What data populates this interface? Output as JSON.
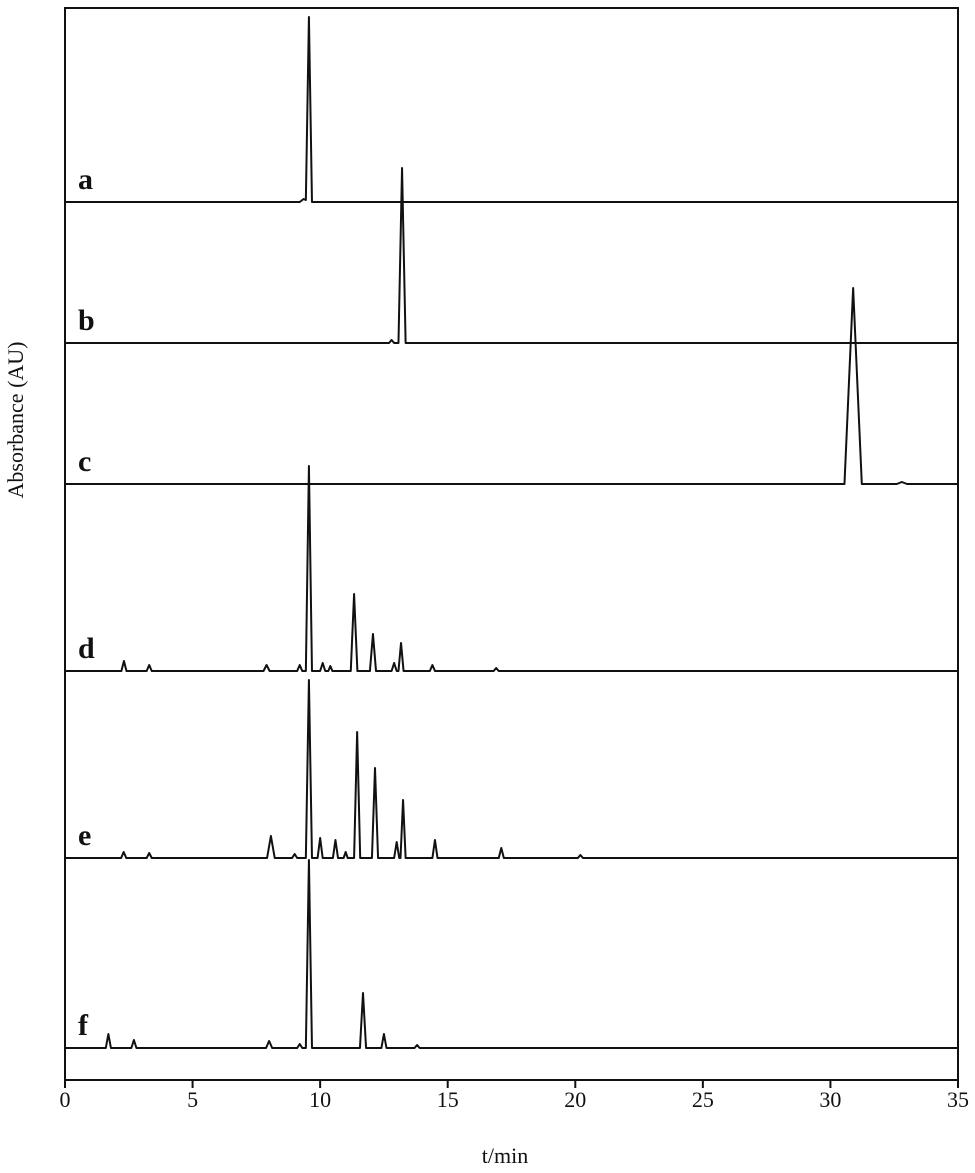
{
  "chart_data": {
    "type": "line",
    "xlabel": "t/min",
    "ylabel": "Absorbance (AU)",
    "xlim": [
      0,
      35
    ],
    "xticks": [
      0,
      5,
      10,
      15,
      20,
      25,
      30,
      35
    ],
    "series": [
      {
        "name": "a",
        "color": "#111111",
        "x": [
          0,
          9.2,
          9.35,
          9.44,
          9.56,
          9.68,
          35
        ],
        "values": [
          0,
          0,
          3,
          2,
          185,
          0,
          0
        ]
      },
      {
        "name": "b",
        "color": "#111111",
        "x": [
          0,
          12.7,
          12.8,
          12.9,
          13.07,
          13.21,
          13.35,
          35
        ],
        "values": [
          0,
          0,
          3,
          0,
          0,
          175,
          0,
          0
        ]
      },
      {
        "name": "c",
        "color": "#111111",
        "x": [
          0,
          30.55,
          30.89,
          31.23,
          32.6,
          32.8,
          33,
          35
        ],
        "values": [
          0,
          0,
          196,
          0,
          0,
          2,
          0,
          0
        ]
      },
      {
        "name": "d",
        "color": "#111111",
        "x": [
          0,
          2.21,
          2.31,
          2.41,
          3.2,
          3.3,
          3.4,
          7.78,
          7.9,
          8.02,
          9.1,
          9.2,
          9.3,
          9.44,
          9.56,
          9.68,
          10.0,
          10.1,
          10.2,
          10.32,
          10.4,
          10.48,
          11.2,
          11.33,
          11.46,
          11.95,
          12.07,
          12.19,
          12.8,
          12.9,
          13.0,
          13.07,
          13.17,
          13.27,
          14.3,
          14.4,
          14.5,
          16.8,
          16.9,
          17.0,
          35
        ],
        "values": [
          0,
          0,
          10,
          0,
          0,
          6,
          0,
          0,
          6,
          0,
          0,
          6,
          0,
          0,
          205,
          0,
          0,
          8,
          0,
          0,
          5,
          0,
          0,
          77,
          0,
          0,
          37,
          0,
          0,
          8,
          0,
          0,
          28,
          0,
          0,
          6,
          0,
          0,
          3,
          0,
          0
        ]
      },
      {
        "name": "e",
        "color": "#111111",
        "x": [
          0,
          2.2,
          2.3,
          2.4,
          3.2,
          3.3,
          3.4,
          7.92,
          8.07,
          8.22,
          8.9,
          9.0,
          9.1,
          9.44,
          9.56,
          9.68,
          9.9,
          10.0,
          10.1,
          10.5,
          10.6,
          10.7,
          10.92,
          11.0,
          11.08,
          11.33,
          11.45,
          11.57,
          12.03,
          12.15,
          12.27,
          12.9,
          13.0,
          13.1,
          13.15,
          13.25,
          13.35,
          14.4,
          14.5,
          14.6,
          17.0,
          17.1,
          17.2,
          20.1,
          20.2,
          20.3,
          35
        ],
        "values": [
          0,
          0,
          6,
          0,
          0,
          5,
          0,
          0,
          22,
          0,
          0,
          4,
          0,
          0,
          178,
          0,
          0,
          20,
          0,
          0,
          18,
          0,
          0,
          6,
          0,
          0,
          126,
          0,
          0,
          90,
          0,
          0,
          16,
          0,
          0,
          58,
          0,
          0,
          18,
          0,
          0,
          10,
          0,
          0,
          3,
          0,
          0
        ]
      },
      {
        "name": "f",
        "color": "#111111",
        "x": [
          0,
          1.6,
          1.7,
          1.8,
          2.6,
          2.7,
          2.8,
          7.88,
          8.0,
          8.12,
          9.1,
          9.2,
          9.3,
          9.44,
          9.56,
          9.68,
          11.56,
          11.68,
          11.8,
          12.4,
          12.5,
          12.6,
          13.7,
          13.8,
          13.9,
          35
        ],
        "values": [
          0,
          0,
          14,
          0,
          0,
          8,
          0,
          0,
          7,
          0,
          0,
          4,
          0,
          0,
          188,
          0,
          0,
          55,
          0,
          0,
          14,
          0,
          0,
          3,
          0,
          0
        ]
      }
    ]
  }
}
